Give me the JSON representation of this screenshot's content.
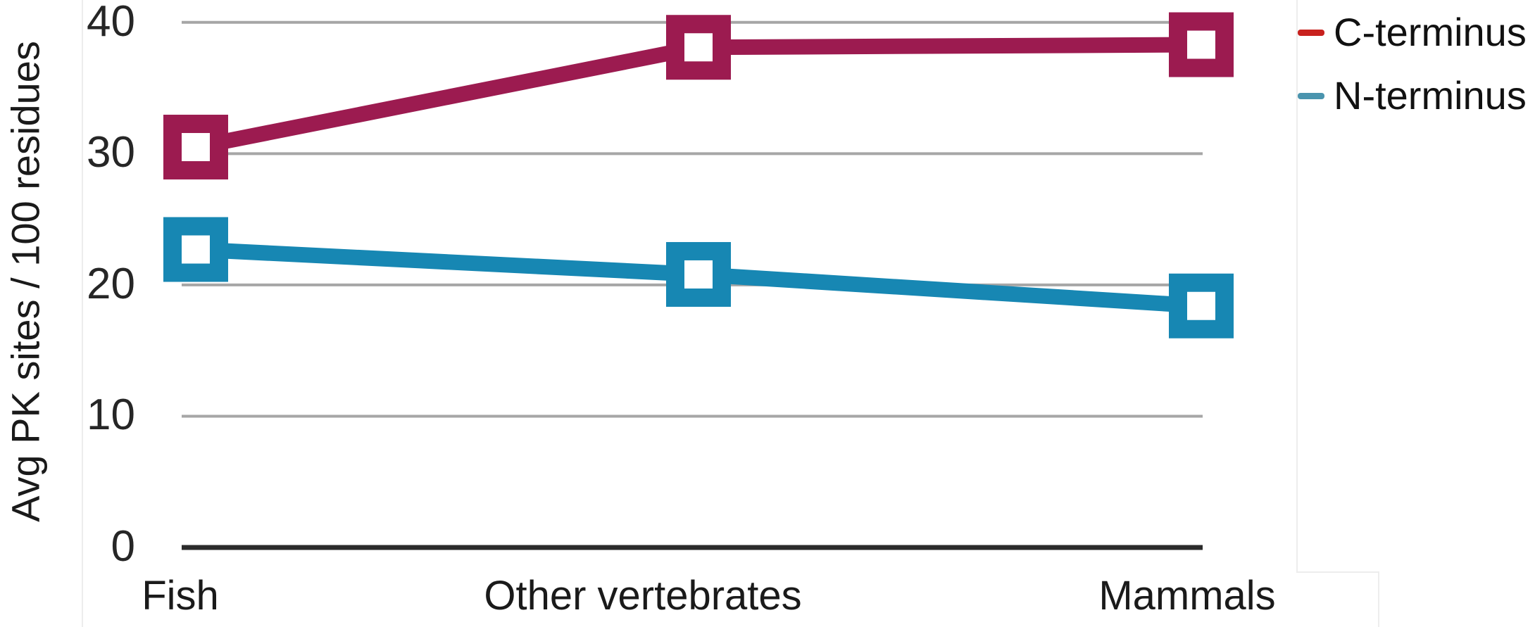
{
  "chart_data": {
    "type": "line",
    "categories": [
      "Fish",
      "Other vertebrates",
      "Mammals"
    ],
    "series": [
      {
        "name": "C-terminus",
        "values": [
          30.5,
          38.1,
          38.3
        ],
        "line_color": "#9C1B50",
        "legend_swatch_color": "#C8211E"
      },
      {
        "name": "N-terminus",
        "values": [
          22.7,
          20.8,
          18.4
        ],
        "line_color": "#1787B3",
        "legend_swatch_color": "#4A94AE"
      }
    ],
    "title": "",
    "xlabel": "",
    "ylabel": "Avg PK sites / 100 residues",
    "yticks": [
      0,
      10,
      20,
      30,
      40
    ],
    "ylim": [
      0,
      42
    ],
    "marker": "open-square",
    "grid": "horizontal",
    "legend_position": "top-right",
    "gridline_color": "#A6A6A6",
    "axis_color": "#2B2B2B",
    "text_color": "#1A1A1A"
  }
}
